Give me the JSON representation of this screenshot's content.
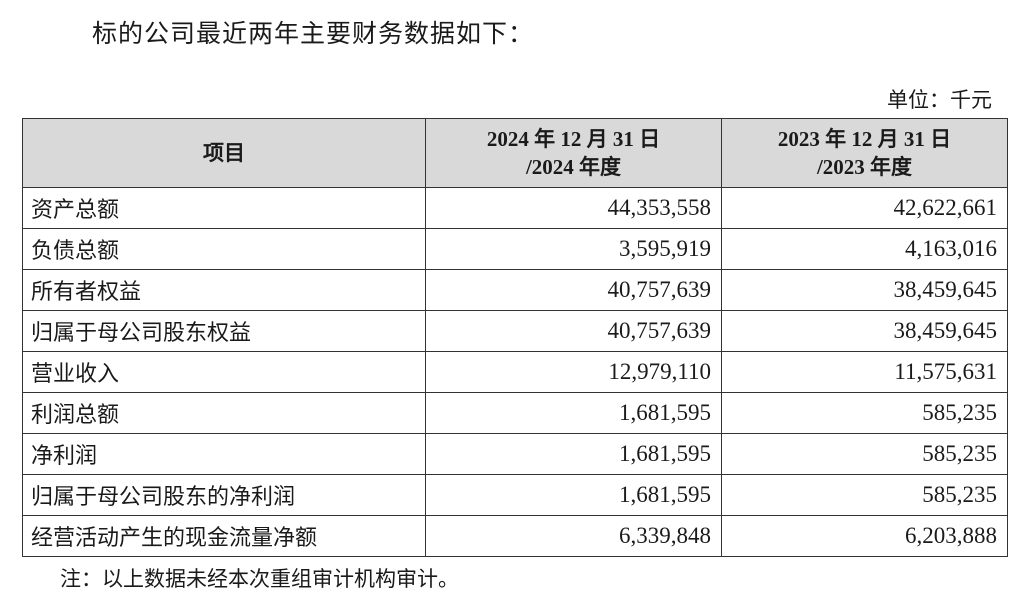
{
  "intro": "标的公司最近两年主要财务数据如下：",
  "unit": "单位：千元",
  "table": {
    "headers": {
      "item": "项目",
      "col2024_line1": "2024 年 12 月 31 日",
      "col2024_line2": "/2024 年度",
      "col2023_line1": "2023 年 12 月 31 日",
      "col2023_line2": "/2023 年度"
    },
    "rows": [
      {
        "label": "资产总额",
        "v2024": "44,353,558",
        "v2023": "42,622,661"
      },
      {
        "label": "负债总额",
        "v2024": "3,595,919",
        "v2023": "4,163,016"
      },
      {
        "label": "所有者权益",
        "v2024": "40,757,639",
        "v2023": "38,459,645"
      },
      {
        "label": "归属于母公司股东权益",
        "v2024": "40,757,639",
        "v2023": "38,459,645"
      },
      {
        "label": "营业收入",
        "v2024": "12,979,110",
        "v2023": "11,575,631"
      },
      {
        "label": "利润总额",
        "v2024": "1,681,595",
        "v2023": "585,235"
      },
      {
        "label": "净利润",
        "v2024": "1,681,595",
        "v2023": "585,235"
      },
      {
        "label": "归属于母公司股东的净利润",
        "v2024": "1,681,595",
        "v2023": "585,235"
      },
      {
        "label": "经营活动产生的现金流量净额",
        "v2024": "6,339,848",
        "v2023": "6,203,888"
      }
    ]
  },
  "note": "注：以上数据未经本次重组审计机构审计。"
}
